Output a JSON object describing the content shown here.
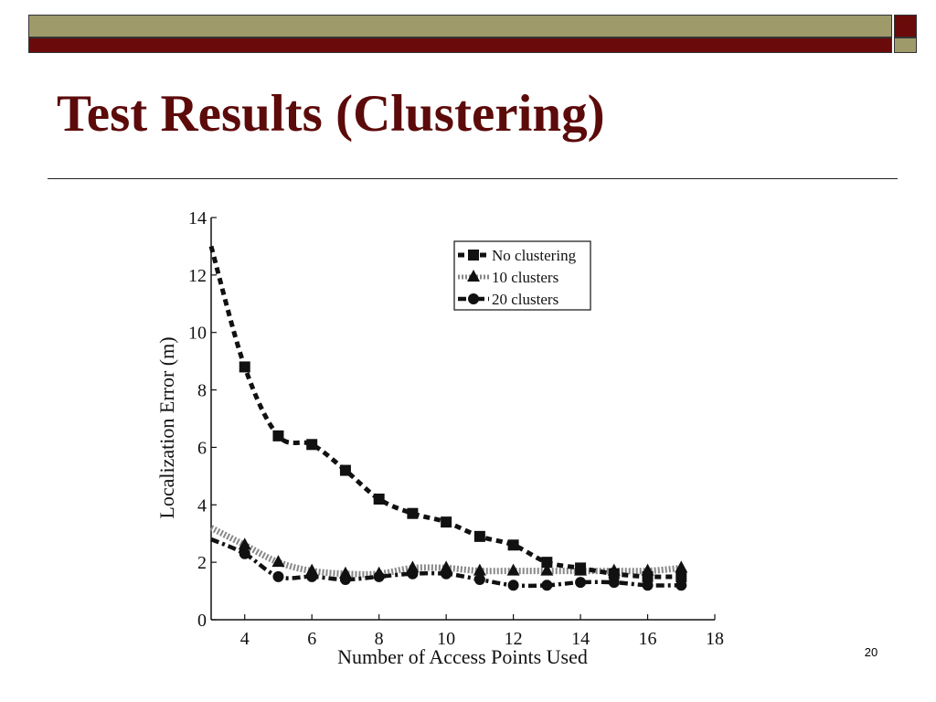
{
  "slide": {
    "title": "Test Results (Clustering)",
    "page_number": "20",
    "colors": {
      "maroon": "#6b0a0a",
      "olive": "#9e9a6a",
      "title": "#5c0a0a"
    }
  },
  "chart_data": {
    "type": "line",
    "title": "",
    "xlabel": "Number of Access Points Used",
    "ylabel": "Localization Error (m)",
    "xlim": [
      3,
      18
    ],
    "ylim": [
      0,
      14
    ],
    "xticks": [
      4,
      6,
      8,
      10,
      12,
      14,
      16,
      18
    ],
    "yticks": [
      0,
      2,
      4,
      6,
      8,
      10,
      12,
      14
    ],
    "grid": false,
    "legend_position": "top-right",
    "series": [
      {
        "name": "No clustering",
        "marker": "square",
        "line_style": "dashed",
        "x": [
          3,
          4,
          5,
          6,
          7,
          8,
          9,
          10,
          11,
          12,
          13,
          14,
          15,
          16,
          17
        ],
        "y": [
          13.0,
          8.8,
          6.4,
          6.1,
          5.2,
          4.2,
          3.7,
          3.4,
          2.9,
          2.6,
          2.0,
          1.8,
          1.6,
          1.5,
          1.5
        ],
        "markers_from_x": 4
      },
      {
        "name": "10 clusters",
        "marker": "triangle",
        "line_style": "dotted",
        "x": [
          3,
          4,
          5,
          6,
          7,
          8,
          9,
          10,
          11,
          12,
          13,
          14,
          15,
          16,
          17
        ],
        "y": [
          3.2,
          2.6,
          2.0,
          1.7,
          1.6,
          1.6,
          1.8,
          1.8,
          1.7,
          1.7,
          1.7,
          1.7,
          1.7,
          1.7,
          1.8
        ],
        "markers_from_x": 4
      },
      {
        "name": "20 clusters",
        "marker": "circle",
        "line_style": "dash-dot",
        "x": [
          3,
          4,
          5,
          6,
          7,
          8,
          9,
          10,
          11,
          12,
          13,
          14,
          15,
          16,
          17
        ],
        "y": [
          2.8,
          2.3,
          1.5,
          1.5,
          1.4,
          1.5,
          1.6,
          1.6,
          1.4,
          1.2,
          1.2,
          1.3,
          1.3,
          1.2,
          1.2
        ],
        "markers_from_x": 4
      }
    ]
  }
}
